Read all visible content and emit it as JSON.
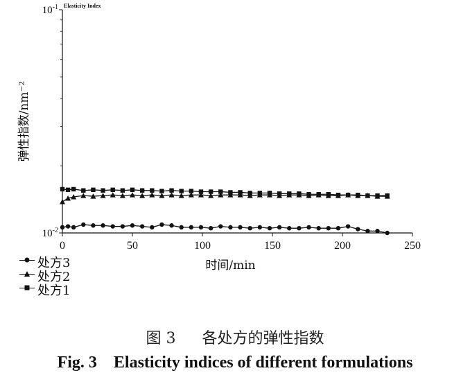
{
  "chart_data": {
    "type": "line",
    "title": "Elasticity Index",
    "xlabel": "时间/min",
    "ylabel": "弹性指数/nm⁻²",
    "xlim": [
      0,
      250
    ],
    "x_ticks": [
      0,
      50,
      100,
      150,
      200,
      250
    ],
    "y_scale": "log",
    "ylim": [
      0.01,
      0.1
    ],
    "y_tick_labels": [
      {
        "value": 0.1,
        "base": "10",
        "exp": "-1"
      },
      {
        "value": 0.01,
        "base": "10",
        "exp": "-2"
      }
    ],
    "grid": false,
    "legend_position": "bottom-left",
    "series": [
      {
        "name": "处方3",
        "marker": "circle",
        "x": [
          0,
          4,
          8,
          15,
          22,
          29,
          36,
          43,
          50,
          57,
          64,
          71,
          78,
          85,
          92,
          99,
          106,
          113,
          120,
          127,
          134,
          141,
          148,
          155,
          162,
          169,
          176,
          183,
          190,
          197,
          204,
          211,
          218,
          225,
          232
        ],
        "values": [
          0.0106,
          0.0107,
          0.0106,
          0.0109,
          0.0108,
          0.0108,
          0.0107,
          0.0107,
          0.0108,
          0.0107,
          0.0106,
          0.0109,
          0.0108,
          0.0106,
          0.0106,
          0.0106,
          0.0105,
          0.0107,
          0.0106,
          0.0106,
          0.0105,
          0.0106,
          0.0105,
          0.0106,
          0.0105,
          0.0105,
          0.0106,
          0.0105,
          0.0105,
          0.0105,
          0.0107,
          0.0104,
          0.0102,
          0.0102,
          0.01
        ]
      },
      {
        "name": "处方2",
        "marker": "triangle",
        "x": [
          0,
          4,
          8,
          15,
          22,
          29,
          36,
          43,
          50,
          57,
          64,
          71,
          78,
          85,
          92,
          99,
          106,
          113,
          120,
          127,
          134,
          141,
          148,
          155,
          162,
          169,
          176,
          183,
          190,
          197,
          204,
          211,
          218,
          225,
          232
        ],
        "values": [
          0.0138,
          0.0143,
          0.0145,
          0.0147,
          0.0146,
          0.0147,
          0.0148,
          0.0147,
          0.0148,
          0.0147,
          0.0148,
          0.0147,
          0.0148,
          0.0147,
          0.0148,
          0.0148,
          0.0147,
          0.0148,
          0.0148,
          0.0148,
          0.0147,
          0.0148,
          0.0148,
          0.0147,
          0.0148,
          0.0148,
          0.0147,
          0.0148,
          0.0147,
          0.0147,
          0.0148,
          0.0147,
          0.0147,
          0.0146,
          0.0146
        ]
      },
      {
        "name": "处方1",
        "marker": "square",
        "x": [
          0,
          4,
          8,
          15,
          22,
          29,
          36,
          43,
          50,
          57,
          64,
          71,
          78,
          85,
          92,
          99,
          106,
          113,
          120,
          127,
          134,
          141,
          148,
          155,
          162,
          169,
          176,
          183,
          190,
          197,
          204,
          211,
          218,
          225,
          232
        ],
        "values": [
          0.0157,
          0.0156,
          0.0157,
          0.0155,
          0.0156,
          0.0155,
          0.0156,
          0.0155,
          0.0156,
          0.0155,
          0.0155,
          0.0154,
          0.0155,
          0.0154,
          0.0154,
          0.0153,
          0.0153,
          0.0153,
          0.0152,
          0.0152,
          0.0151,
          0.0151,
          0.0151,
          0.015,
          0.015,
          0.015,
          0.0149,
          0.0149,
          0.0149,
          0.0148,
          0.0148,
          0.0148,
          0.0147,
          0.0147,
          0.0147
        ]
      }
    ]
  },
  "legend_order": [
    "处方3",
    "处方2",
    "处方1"
  ],
  "caption": {
    "cn_figure": "图 3",
    "cn_text": "各处方的弹性指数",
    "en": "Fig. 3    Elasticity indices of different formulations"
  },
  "colors": {
    "line": "#111111",
    "background": "#ffffff"
  }
}
